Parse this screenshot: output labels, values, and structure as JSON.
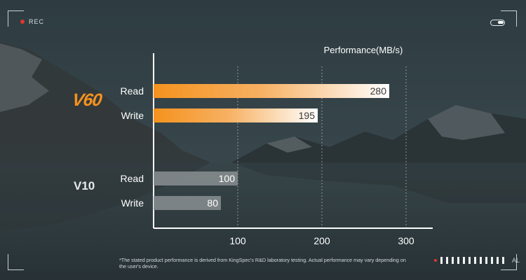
{
  "overlay": {
    "rec_label": "REC",
    "meter_label": "AL",
    "footnote": "*The stated product performance is derived from KingSpec's R&D laboratory testing. Actual performance may vary depending on the user's device."
  },
  "colors": {
    "v60_accent": "#f5921e",
    "v10_bar": "#8a8f92",
    "record_dot": "#e2342d"
  },
  "chart_data": {
    "type": "bar",
    "orientation": "horizontal",
    "title": "Performance(MB/s)",
    "xlabel": "",
    "ylabel": "",
    "xlim": [
      0,
      300
    ],
    "xticks": [
      100,
      200,
      300
    ],
    "grid": "vertical dotted at ticks",
    "groups": [
      {
        "label": "V60",
        "color": "#f5921e",
        "bars": [
          {
            "category": "Read",
            "value": 280
          },
          {
            "category": "Write",
            "value": 195
          }
        ]
      },
      {
        "label": "V10",
        "color": "#8a8f92",
        "bars": [
          {
            "category": "Read",
            "value": 100
          },
          {
            "category": "Write",
            "value": 80
          }
        ]
      }
    ]
  }
}
